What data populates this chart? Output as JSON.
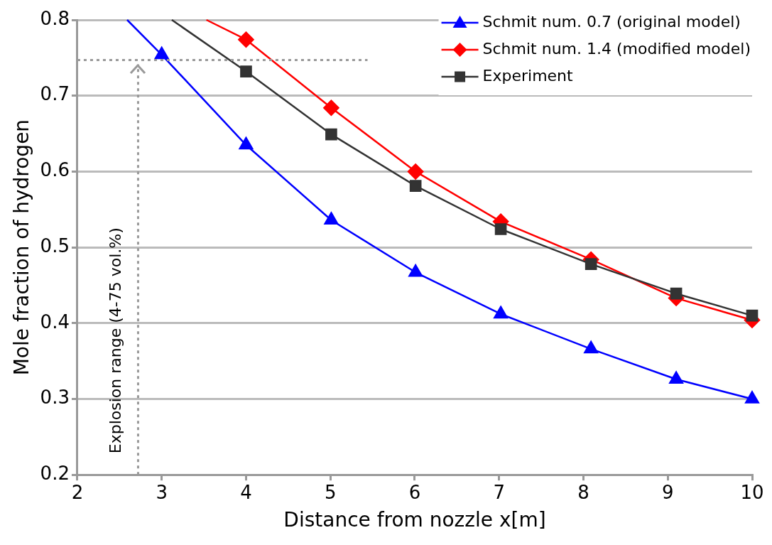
{
  "chart_data": {
    "type": "line",
    "xlabel": "Distance from nozzle x[m]",
    "ylabel": "Mole fraction of hydrogen",
    "xlim": [
      2,
      10
    ],
    "xticks": [
      2,
      3,
      4,
      5,
      6,
      7,
      8,
      9,
      10
    ],
    "ylim": [
      0.2,
      0.8
    ],
    "yticks": [
      {
        "value": 0.2,
        "label": "0.2"
      },
      {
        "value": 0.3,
        "label": "0.3"
      },
      {
        "value": 0.4,
        "label": "0.4"
      },
      {
        "value": 0.5,
        "label": "0.5"
      },
      {
        "value": 0.6,
        "label": "0.6"
      },
      {
        "value": 0.7,
        "label": "0.7"
      },
      {
        "value": 0.8,
        "label": "0.8"
      }
    ],
    "grid": "y",
    "legend": "top right",
    "line_style": "solid",
    "series": [
      {
        "name": "Schmit num. 0.7 (original model)",
        "color": "#0000ff",
        "marker": "triangle",
        "x": [
          2.59,
          3.0,
          4.0,
          5.01,
          6.01,
          7.02,
          8.09,
          9.1,
          10
        ],
        "values": [
          0.8,
          0.754,
          0.635,
          0.536,
          0.467,
          0.412,
          0.366,
          0.326,
          0.3
        ]
      },
      {
        "name": "Schmit num. 1.4 (modified model)",
        "color": "#ff0000",
        "marker": "diamond",
        "x": [
          3.53,
          4.0,
          5.01,
          6.01,
          7.02,
          8.09,
          9.1,
          10
        ],
        "values": [
          0.8,
          0.774,
          0.684,
          0.6,
          0.534,
          0.484,
          0.433,
          0.404
        ]
      },
      {
        "name": "Experiment",
        "color": "#333333",
        "marker": "square",
        "x": [
          3.12,
          4.0,
          5.01,
          6.01,
          7.02,
          8.09,
          9.1,
          10
        ],
        "values": [
          0.8,
          0.732,
          0.649,
          0.581,
          0.524,
          0.478,
          0.439,
          0.41
        ]
      }
    ],
    "ref_lines": [
      {
        "axis": "x",
        "value": 2.72,
        "label": "Explosion range (4-75 vol.%)",
        "color": "#999999",
        "line_style": "dotted"
      },
      {
        "axis": "y",
        "value": 0.747,
        "label": null,
        "color": "#999999",
        "line_style": "dotted"
      }
    ]
  }
}
